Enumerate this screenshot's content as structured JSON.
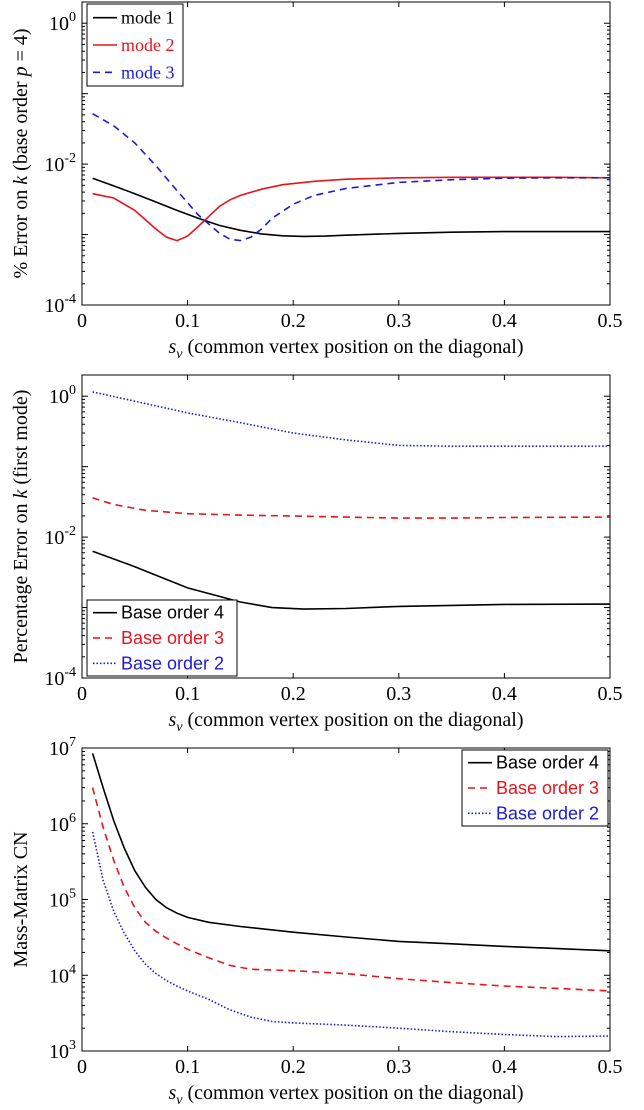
{
  "chart_data": [
    {
      "type": "line",
      "title": "",
      "xlabel": "s_v (common vertex position on the diagonal)",
      "ylabel": "% Error on k (base order p = 4)",
      "xlim": [
        0,
        0.5
      ],
      "ylim": [
        0.0001,
        2
      ],
      "yscale": "log",
      "xticks": [
        "0",
        "0.1",
        "0.2",
        "0.3",
        "0.4",
        "0.5"
      ],
      "yticks": [
        "10^-4",
        "10^-2",
        "10^0"
      ],
      "grid": false,
      "legend_position": "top-left",
      "series": [
        {
          "name": "mode 1",
          "color": "#000000",
          "style": "solid",
          "x": [
            0.01,
            0.03,
            0.05,
            0.07,
            0.09,
            0.11,
            0.13,
            0.15,
            0.17,
            0.19,
            0.21,
            0.23,
            0.25,
            0.3,
            0.35,
            0.4,
            0.45,
            0.5
          ],
          "y": [
            0.0063,
            0.0049,
            0.0038,
            0.0029,
            0.0022,
            0.0017,
            0.00135,
            0.00115,
            0.00102,
            0.00096,
            0.00094,
            0.00095,
            0.00098,
            0.00104,
            0.00108,
            0.0011,
            0.0011,
            0.0011
          ]
        },
        {
          "name": "mode 2",
          "color": "#e8141b",
          "style": "solid",
          "x": [
            0.01,
            0.03,
            0.05,
            0.07,
            0.08,
            0.09,
            0.1,
            0.11,
            0.12,
            0.13,
            0.14,
            0.15,
            0.17,
            0.19,
            0.22,
            0.25,
            0.3,
            0.35,
            0.4,
            0.45,
            0.5
          ],
          "y": [
            0.0038,
            0.0033,
            0.0022,
            0.0012,
            0.00092,
            0.00082,
            0.00095,
            0.0013,
            0.0018,
            0.0025,
            0.0031,
            0.0036,
            0.0044,
            0.0051,
            0.0057,
            0.0061,
            0.0064,
            0.0065,
            0.0065,
            0.0065,
            0.0064
          ]
        },
        {
          "name": "mode 3",
          "color": "#1b1bd6",
          "style": "dashed",
          "x": [
            0.01,
            0.03,
            0.05,
            0.07,
            0.09,
            0.11,
            0.13,
            0.14,
            0.15,
            0.16,
            0.17,
            0.18,
            0.2,
            0.22,
            0.25,
            0.3,
            0.35,
            0.4,
            0.45,
            0.5
          ],
          "y": [
            0.052,
            0.035,
            0.02,
            0.0095,
            0.0042,
            0.0019,
            0.00105,
            0.00086,
            0.00082,
            0.00092,
            0.0012,
            0.0017,
            0.0027,
            0.0036,
            0.0045,
            0.0055,
            0.006,
            0.0063,
            0.0064,
            0.0064
          ]
        }
      ]
    },
    {
      "type": "line",
      "title": "",
      "xlabel": "s_v (common vertex position on the diagonal)",
      "ylabel": "Percentage Error on k (first mode)",
      "xlim": [
        0,
        0.5
      ],
      "ylim": [
        0.0001,
        2
      ],
      "yscale": "log",
      "xticks": [
        "0",
        "0.1",
        "0.2",
        "0.3",
        "0.4",
        "0.5"
      ],
      "yticks": [
        "10^-4",
        "10^-2",
        "10^0"
      ],
      "grid": false,
      "legend_position": "bottom-left",
      "series": [
        {
          "name": "Base order 4",
          "color": "#000000",
          "style": "solid",
          "x": [
            0.01,
            0.05,
            0.1,
            0.15,
            0.18,
            0.21,
            0.25,
            0.3,
            0.4,
            0.5
          ],
          "y": [
            0.0063,
            0.0038,
            0.0019,
            0.0012,
            0.001,
            0.00095,
            0.00097,
            0.00104,
            0.00111,
            0.00112
          ]
        },
        {
          "name": "Base order 3",
          "color": "#e8141b",
          "style": "dashed",
          "x": [
            0.01,
            0.03,
            0.06,
            0.1,
            0.15,
            0.2,
            0.25,
            0.3,
            0.35,
            0.4,
            0.45,
            0.5
          ],
          "y": [
            0.036,
            0.029,
            0.024,
            0.0215,
            0.0205,
            0.0199,
            0.0192,
            0.0186,
            0.0186,
            0.019,
            0.0191,
            0.0192
          ]
        },
        {
          "name": "Base order 2",
          "color": "#1b1bd6",
          "style": "dotted",
          "x": [
            0.01,
            0.05,
            0.1,
            0.15,
            0.2,
            0.25,
            0.3,
            0.35,
            0.4,
            0.45,
            0.5
          ],
          "y": [
            1.15,
            0.85,
            0.58,
            0.42,
            0.3,
            0.24,
            0.2,
            0.195,
            0.195,
            0.195,
            0.196
          ]
        }
      ]
    },
    {
      "type": "line",
      "title": "",
      "xlabel": "s_v (common vertex position on the diagonal)",
      "ylabel": "Mass-Matrix CN",
      "xlim": [
        0,
        0.5
      ],
      "ylim": [
        1000,
        10000000
      ],
      "yscale": "log",
      "xticks": [
        "0",
        "0.1",
        "0.2",
        "0.3",
        "0.4",
        "0.5"
      ],
      "yticks": [
        "10^3",
        "10^4",
        "10^5",
        "10^6",
        "10^7"
      ],
      "grid": false,
      "legend_position": "top-right",
      "series": [
        {
          "name": "Base order 4",
          "color": "#000000",
          "style": "solid",
          "x": [
            0.01,
            0.02,
            0.03,
            0.04,
            0.05,
            0.06,
            0.07,
            0.08,
            0.09,
            0.1,
            0.12,
            0.15,
            0.2,
            0.25,
            0.3,
            0.35,
            0.4,
            0.45,
            0.5
          ],
          "y": [
            8500000,
            3000000,
            1100000,
            480000,
            240000,
            145000,
            100000,
            78000,
            66000,
            58000,
            50000,
            44000,
            37000,
            32000,
            28000,
            26000,
            24000,
            22500,
            21000
          ]
        },
        {
          "name": "Base order 3",
          "color": "#e8141b",
          "style": "dashed",
          "x": [
            0.01,
            0.02,
            0.03,
            0.04,
            0.05,
            0.06,
            0.07,
            0.08,
            0.09,
            0.1,
            0.12,
            0.14,
            0.16,
            0.2,
            0.25,
            0.3,
            0.35,
            0.4,
            0.45,
            0.5
          ],
          "y": [
            3000000,
            900000,
            330000,
            145000,
            78000,
            50000,
            38000,
            31000,
            26000,
            22000,
            17000,
            13500,
            12000,
            11500,
            10500,
            9000,
            8000,
            7200,
            6700,
            6200
          ]
        },
        {
          "name": "Base order 2",
          "color": "#1b1bd6",
          "style": "dotted",
          "x": [
            0.01,
            0.02,
            0.03,
            0.04,
            0.05,
            0.06,
            0.07,
            0.08,
            0.09,
            0.1,
            0.12,
            0.14,
            0.16,
            0.18,
            0.2,
            0.25,
            0.3,
            0.35,
            0.4,
            0.45,
            0.5
          ],
          "y": [
            780000,
            180000,
            70000,
            36000,
            21000,
            14000,
            10500,
            8500,
            7200,
            6200,
            4800,
            3500,
            2800,
            2450,
            2350,
            2200,
            2000,
            1800,
            1650,
            1550,
            1580
          ]
        }
      ]
    }
  ]
}
